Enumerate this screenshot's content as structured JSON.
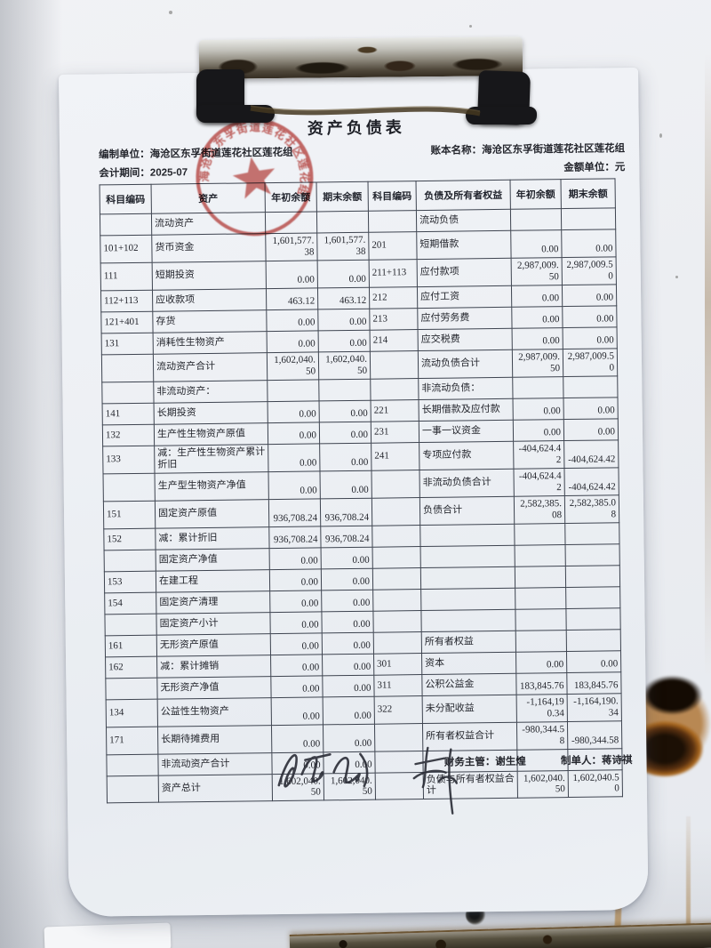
{
  "document": {
    "title": "资产负债表",
    "meta": {
      "prepared_by": "编制单位：海沧区东孚街道莲花社区莲花组",
      "period": "会计期间：2025-07",
      "book_name": "账本名称：海沧区东孚街道莲花社区莲花组",
      "unit": "金额单位：元"
    },
    "stamp": {
      "arc_text": "海沧区东孚街道莲花社区莲花组",
      "color": "#b8302a"
    },
    "table": {
      "headers": [
        "科目编码",
        "资产",
        "年初余额",
        "期末余额",
        "科目编码",
        "负债及所有者权益",
        "年初余额",
        "期末余额"
      ],
      "rows": [
        [
          "",
          "流动资产",
          "",
          "",
          "",
          "流动负债",
          "",
          ""
        ],
        [
          "101+102",
          "货币资金",
          "1,601,577.38",
          "1,601,577.38",
          "201",
          "短期借款",
          "0.00",
          "0.00"
        ],
        [
          "111",
          "短期投资",
          "0.00",
          "0.00",
          "211+113",
          "应付款项",
          "2,987,009.50",
          "2,987,009.50"
        ],
        [
          "112+113",
          "应收款项",
          "463.12",
          "463.12",
          "212",
          "应付工资",
          "0.00",
          "0.00"
        ],
        [
          "121+401",
          "存货",
          "0.00",
          "0.00",
          "213",
          "应付劳务费",
          "0.00",
          "0.00"
        ],
        [
          "131",
          "消耗性生物资产",
          "0.00",
          "0.00",
          "214",
          "应交税费",
          "0.00",
          "0.00"
        ],
        [
          "",
          "流动资产合计",
          "1,602,040.50",
          "1,602,040.50",
          "",
          "流动负债合计",
          "2,987,009.50",
          "2,987,009.50"
        ],
        [
          "",
          "非流动资产：",
          "",
          "",
          "",
          "非流动负债：",
          "",
          ""
        ],
        [
          "141",
          "长期投资",
          "0.00",
          "0.00",
          "221",
          "长期借款及应付款",
          "0.00",
          "0.00"
        ],
        [
          "132",
          "生产性生物资产原值",
          "0.00",
          "0.00",
          "231",
          "一事一议资金",
          "0.00",
          "0.00"
        ],
        [
          "133",
          "减：生产性生物资产累计折旧",
          "0.00",
          "0.00",
          "241",
          "专项应付款",
          "-404,624.42",
          "-404,624.42"
        ],
        [
          "",
          "生产型生物资产净值",
          "0.00",
          "0.00",
          "",
          "非流动负债合计",
          "-404,624.42",
          "-404,624.42"
        ],
        [
          "151",
          "固定资产原值",
          "936,708.24",
          "936,708.24",
          "",
          "负债合计",
          "2,582,385.08",
          "2,582,385.08"
        ],
        [
          "152",
          "减：累计折旧",
          "936,708.24",
          "936,708.24",
          "",
          "",
          "",
          ""
        ],
        [
          "",
          "固定资产净值",
          "0.00",
          "0.00",
          "",
          "",
          "",
          ""
        ],
        [
          "153",
          "在建工程",
          "0.00",
          "0.00",
          "",
          "",
          "",
          ""
        ],
        [
          "154",
          "固定资产清理",
          "0.00",
          "0.00",
          "",
          "",
          "",
          ""
        ],
        [
          "",
          "固定资产小计",
          "0.00",
          "0.00",
          "",
          "",
          "",
          ""
        ],
        [
          "161",
          "无形资产原值",
          "0.00",
          "0.00",
          "",
          "所有者权益",
          "",
          ""
        ],
        [
          "162",
          "减：累计摊销",
          "0.00",
          "0.00",
          "301",
          "资本",
          "0.00",
          "0.00"
        ],
        [
          "",
          "无形资产净值",
          "0.00",
          "0.00",
          "311",
          "公积公益金",
          "183,845.76",
          "183,845.76"
        ],
        [
          "134",
          "公益性生物资产",
          "0.00",
          "0.00",
          "322",
          "未分配收益",
          "-1,164,190.34",
          "-1,164,190.34"
        ],
        [
          "171",
          "长期待摊费用",
          "0.00",
          "0.00",
          "",
          "所有者权益合计",
          "-980,344.58",
          "-980,344.58"
        ],
        [
          "",
          "非流动资产合计",
          "0.00",
          "0.00",
          "",
          "",
          "",
          ""
        ],
        [
          "",
          "资产总计",
          "1,602,040.50",
          "1,602,040.50",
          "",
          "负债与所有者权益合计",
          "1,602,040.50",
          "1,602,040.50"
        ]
      ]
    },
    "footer": {
      "finance_manager": "财务主管：谢生煌",
      "preparer": "制单人：蒋诗祺"
    }
  },
  "scene": {
    "colors": {
      "wall": "#eceef2",
      "paper": "#edf0f4",
      "stamp_red": "#b8302a",
      "rust": "#5a3110",
      "ink": "#23252c"
    }
  }
}
